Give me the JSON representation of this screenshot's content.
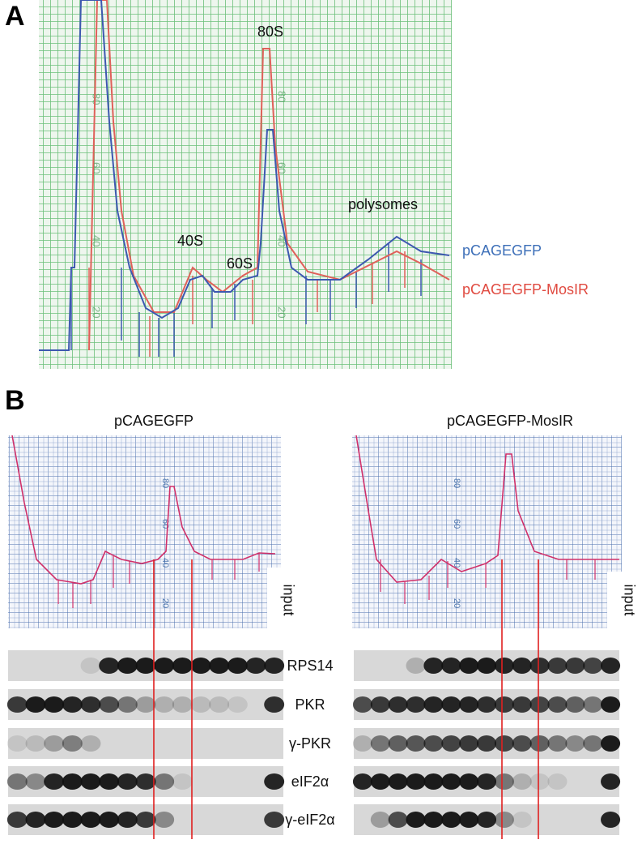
{
  "panel_a": {
    "label": "A",
    "peak_labels": [
      "80S",
      "40S",
      "60S",
      "polysomes"
    ],
    "legend": [
      "pCAGEGFP",
      "pCAGEGFP-MosIR"
    ],
    "scale_labels": [
      "80",
      "60",
      "40",
      "20"
    ]
  },
  "panel_b": {
    "label": "B",
    "profiles": [
      {
        "title": "pCAGEGFP",
        "input_label": "input"
      },
      {
        "title": "pCAGEGFP-MosIR",
        "input_label": "input"
      }
    ],
    "scale_labels": [
      "80",
      "60",
      "40",
      "20"
    ],
    "blot_labels": [
      "RPS14",
      "PKR",
      "γ-PKR",
      "eIF2α",
      "γ-eIF2α"
    ]
  }
}
